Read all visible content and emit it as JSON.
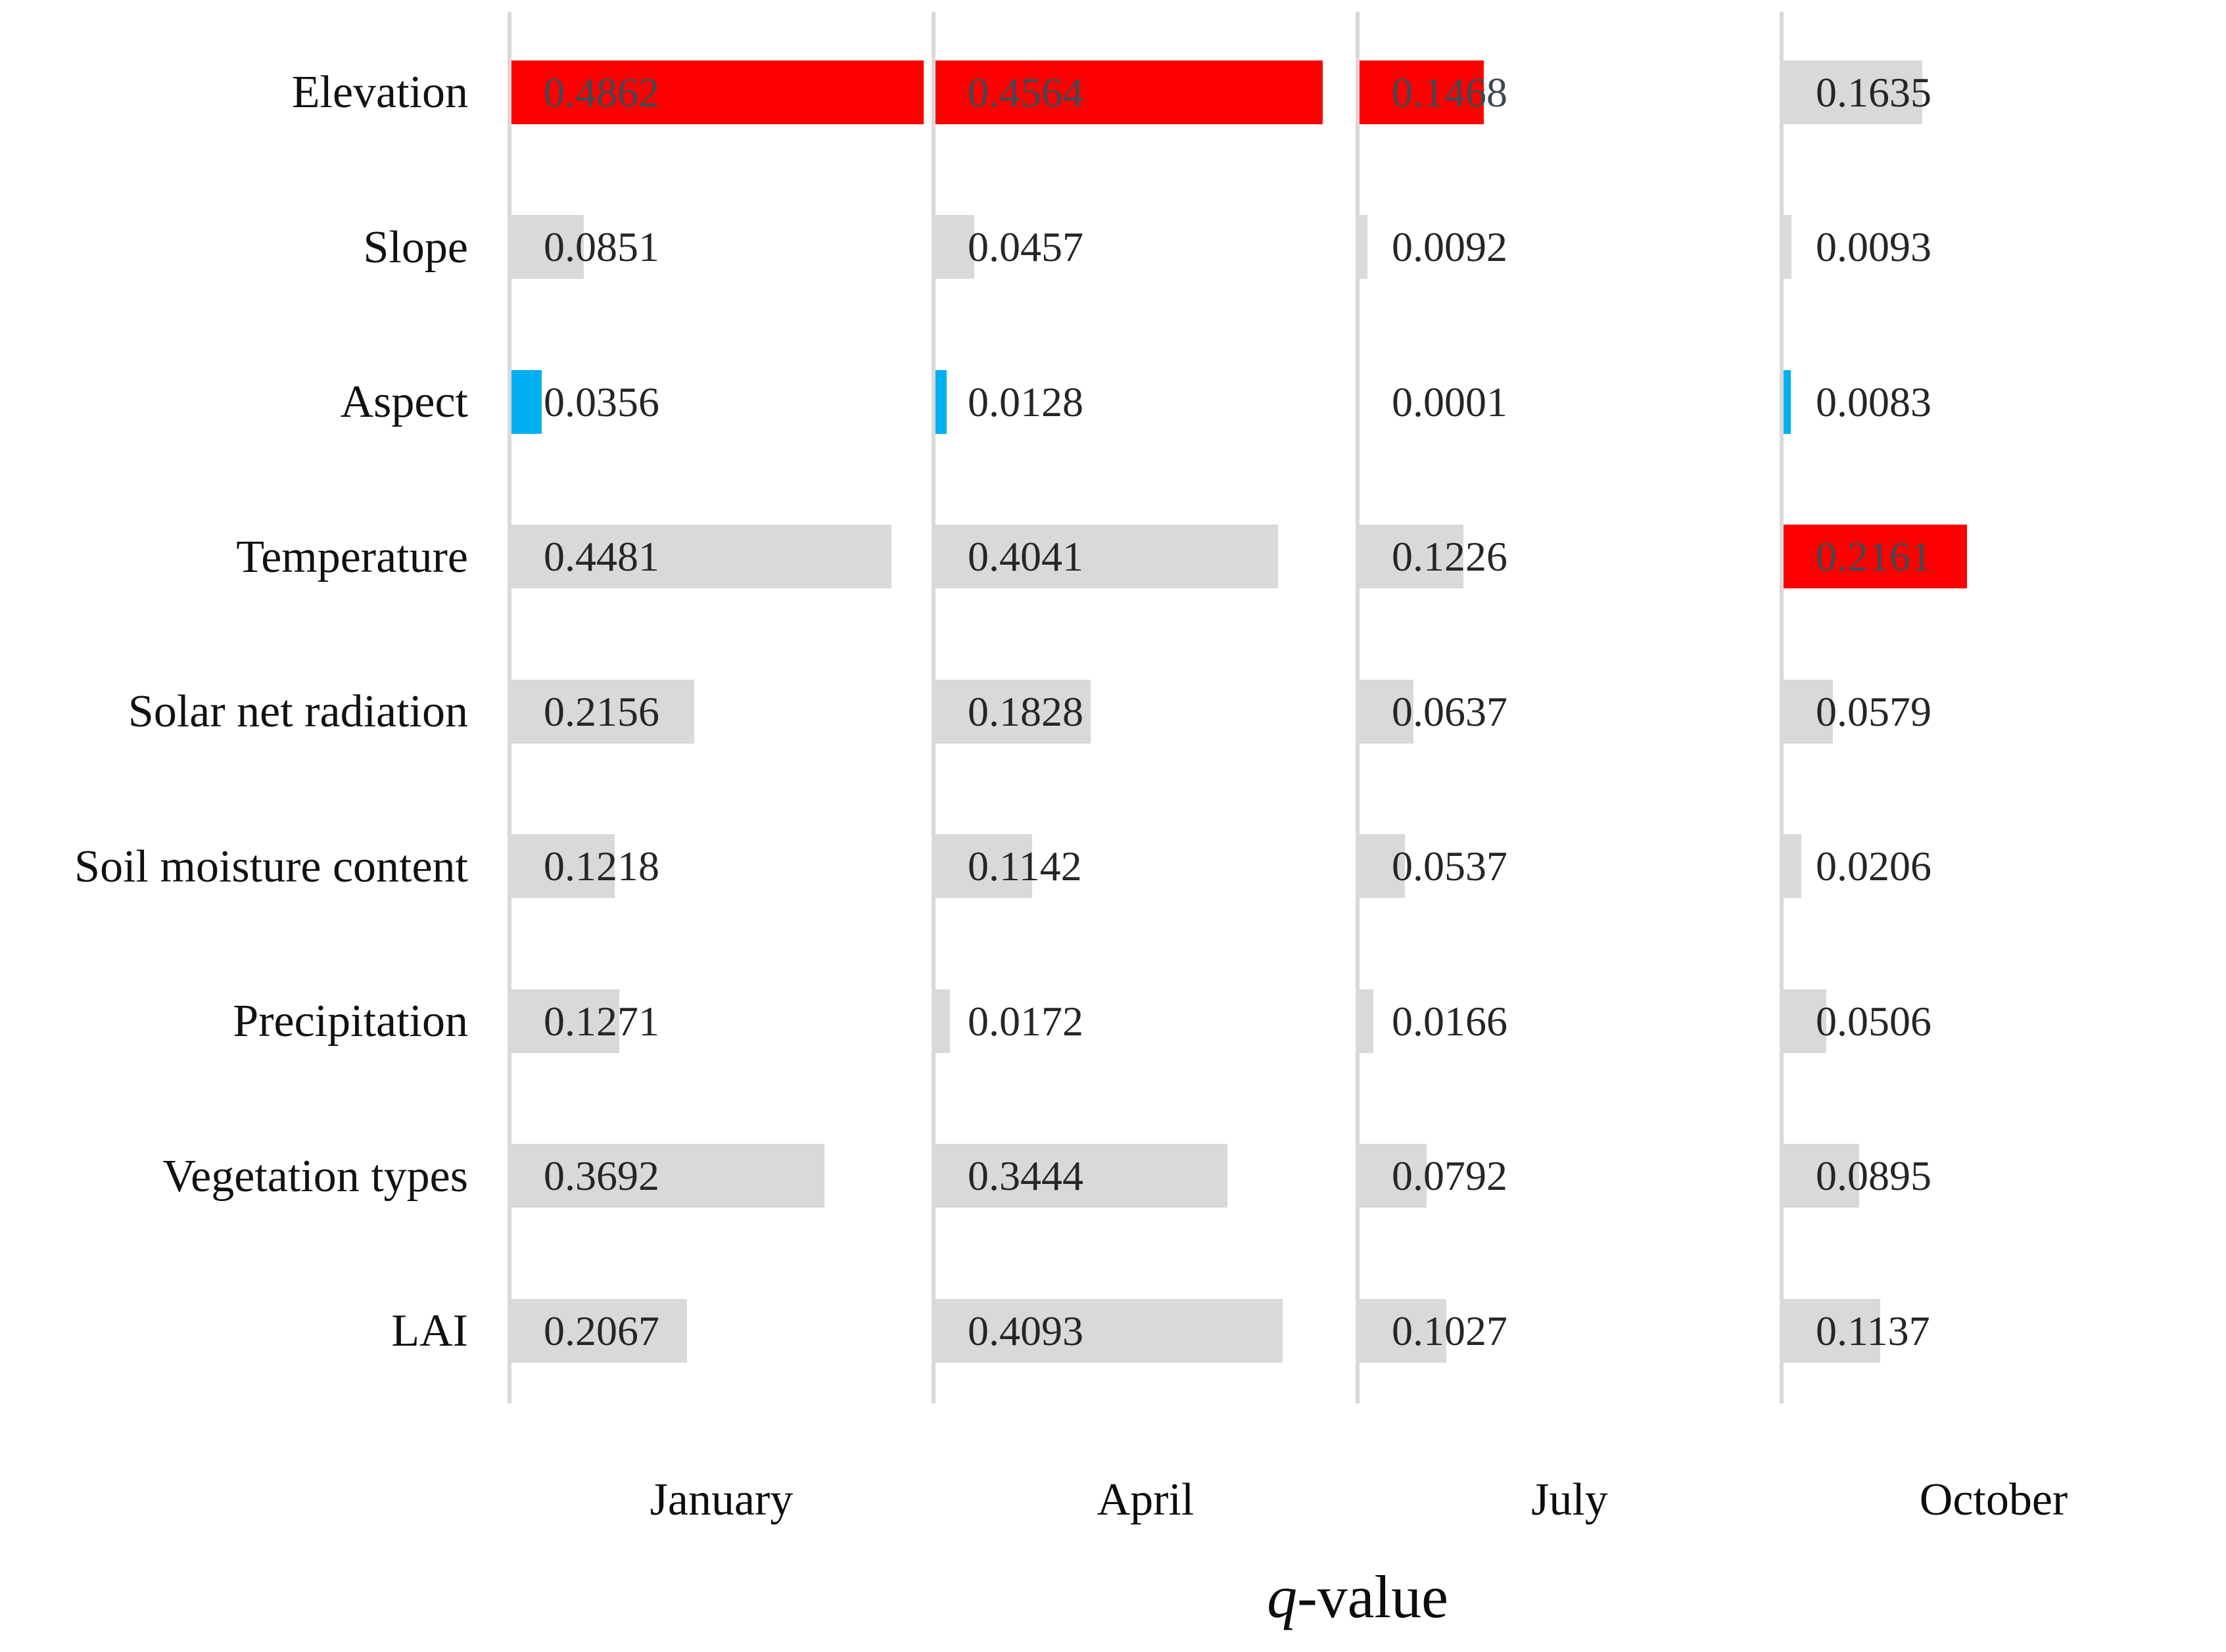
{
  "chart_data": {
    "type": "bar",
    "orientation": "horizontal",
    "xlabel": "q-value",
    "xlabel_parts": {
      "italic": "q",
      "rest": "-value"
    },
    "categories": [
      "Elevation",
      "Slope",
      "Aspect",
      "Temperature",
      "Solar net radiation",
      "Soil moisture content",
      "Precipitation",
      "Vegetation types",
      "LAI"
    ],
    "panels": [
      "January",
      "April",
      "July",
      "October"
    ],
    "xlim_per_panel": [
      0,
      0.5
    ],
    "grid": "off",
    "legend": "none",
    "value_decimals": 4,
    "palette": {
      "red": "#ff0000",
      "gray": "#d9d9d9",
      "blue": "#00b0f0"
    },
    "series": [
      {
        "name": "January",
        "values": [
          0.4862,
          0.0851,
          0.0356,
          0.4481,
          0.2156,
          0.1218,
          0.1271,
          0.3692,
          0.2067
        ],
        "colors": [
          "red",
          "gray",
          "blue",
          "gray",
          "gray",
          "gray",
          "gray",
          "gray",
          "gray"
        ]
      },
      {
        "name": "April",
        "values": [
          0.4564,
          0.0457,
          0.0128,
          0.4041,
          0.1828,
          0.1142,
          0.0172,
          0.3444,
          0.4093
        ],
        "colors": [
          "red",
          "gray",
          "blue",
          "gray",
          "gray",
          "gray",
          "gray",
          "gray",
          "gray"
        ]
      },
      {
        "name": "July",
        "values": [
          0.1468,
          0.0092,
          0.0001,
          0.1226,
          0.0637,
          0.0537,
          0.0166,
          0.0792,
          0.1027
        ],
        "colors": [
          "red",
          "gray",
          "gray",
          "gray",
          "gray",
          "gray",
          "gray",
          "gray",
          "gray"
        ]
      },
      {
        "name": "October",
        "values": [
          0.1635,
          0.0093,
          0.0083,
          0.2161,
          0.0579,
          0.0206,
          0.0506,
          0.0895,
          0.1137
        ],
        "colors": [
          "gray",
          "gray",
          "blue",
          "red",
          "gray",
          "gray",
          "gray",
          "gray",
          "gray"
        ]
      }
    ]
  }
}
